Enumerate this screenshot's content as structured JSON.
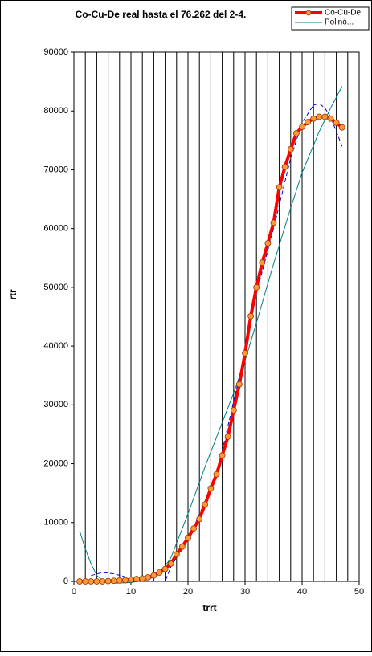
{
  "chart_data": {
    "type": "line",
    "title": "Co-Cu-De  real hasta el 76.262  del 2-4.",
    "xlabel": "trrt",
    "ylabel": "rtr",
    "xlim": [
      0,
      50
    ],
    "xticks": [
      0,
      10,
      20,
      30,
      40,
      50
    ],
    "xminorticks": [
      2,
      4,
      6,
      8,
      12,
      14,
      16,
      18,
      22,
      24,
      26,
      28,
      32,
      34,
      36,
      38,
      42,
      44,
      46,
      48
    ],
    "ylim": [
      0,
      90000
    ],
    "yticks": [
      0,
      10000,
      20000,
      30000,
      40000,
      50000,
      60000,
      70000,
      80000,
      90000
    ],
    "grid": true,
    "legend": "upper right",
    "series": [
      {
        "name": "Co-Cu-De",
        "color": "#ff0000",
        "marker_color": "#ff9933",
        "line_width": 4,
        "x": [
          1,
          2,
          3,
          4,
          5,
          6,
          7,
          8,
          9,
          10,
          11,
          12,
          13,
          14,
          15,
          16,
          17,
          18,
          19,
          20,
          21,
          22,
          23,
          24,
          25,
          26,
          27,
          28,
          29,
          30,
          31,
          32,
          33,
          34,
          35,
          36,
          37,
          38,
          39,
          40,
          41,
          42,
          43,
          44,
          45,
          46,
          47
        ],
        "values": [
          0,
          0,
          0,
          0,
          0,
          50,
          100,
          150,
          200,
          300,
          400,
          500,
          700,
          1000,
          1500,
          2100,
          3000,
          4600,
          5900,
          7400,
          9000,
          10600,
          13100,
          15800,
          18200,
          21400,
          24600,
          29100,
          33500,
          38800,
          45100,
          50000,
          54200,
          57500,
          61000,
          67000,
          70500,
          73500,
          76200,
          77300,
          78100,
          78700,
          79000,
          79000,
          78700,
          78000,
          77200
        ]
      },
      {
        "name": "Polinó...",
        "color": "#008080",
        "line_width": 1,
        "x": [
          1,
          2,
          3,
          4,
          5,
          7,
          10,
          13,
          15,
          17,
          20,
          23,
          25,
          28,
          30,
          32,
          35,
          38,
          40,
          43,
          45,
          47
        ],
        "values": [
          8600,
          5500,
          3000,
          1000,
          200,
          -300,
          -200,
          300,
          1200,
          4000,
          11500,
          19500,
          24500,
          32000,
          37500,
          44000,
          54000,
          63500,
          69500,
          76500,
          80500,
          84200
        ]
      },
      {
        "color": "#0000cc",
        "line_width": 1,
        "dashed": true,
        "x": [
          3,
          5,
          7,
          10,
          13,
          16,
          17,
          20,
          25,
          30,
          32,
          35,
          38,
          40,
          42,
          43,
          44,
          45,
          46,
          47
        ],
        "values": [
          1000,
          1500,
          1300,
          500,
          0,
          0,
          2500,
          7000,
          18000,
          39000,
          49000,
          60000,
          72000,
          78000,
          81000,
          81300,
          80500,
          79000,
          76500,
          74000
        ]
      }
    ]
  }
}
